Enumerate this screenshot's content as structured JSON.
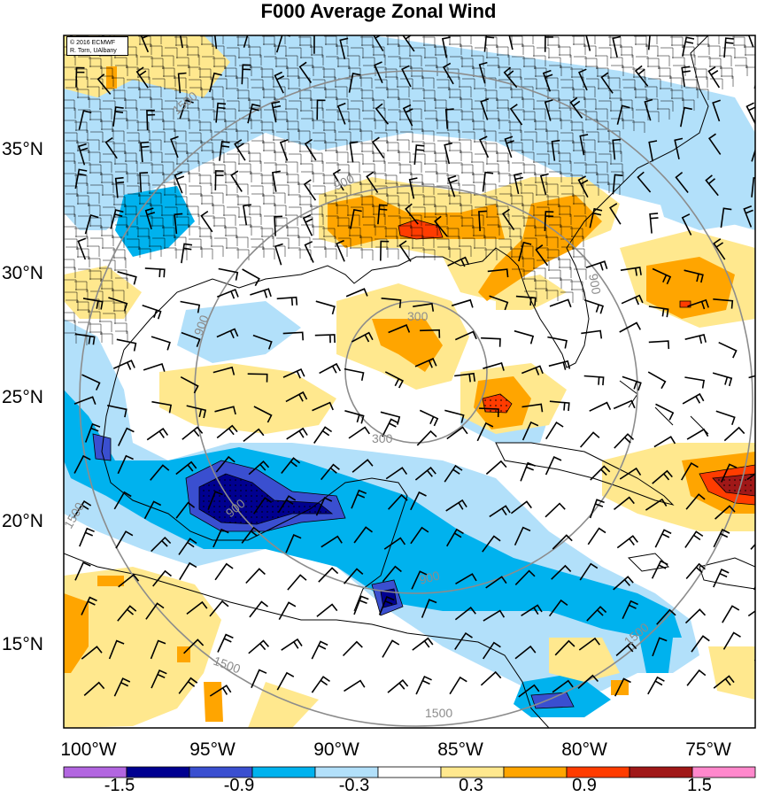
{
  "title": "F000 Average Zonal Wind",
  "credit": {
    "line1": "© 2016 ECMWF",
    "line2": "R. Torn, UAlbany"
  },
  "lat_labels": [
    "35°N",
    "30°N",
    "25°N",
    "20°N",
    "15°N"
  ],
  "lon_labels": [
    "100°W",
    "95°W",
    "90°W",
    "85°W",
    "80°W",
    "75°W"
  ],
  "colorbar": {
    "tick_labels": [
      "-1.5",
      "-0.9",
      "-0.3",
      "0.3",
      "0.9",
      "1.5"
    ],
    "colors": [
      "#b266e0",
      "#000090",
      "#3a4fd0",
      "#00b2ee",
      "#b2e0fa",
      "#ffffff",
      "#ffe88e",
      "#ffa500",
      "#ff3c00",
      "#a01818",
      "#ff88cc"
    ]
  },
  "contour_labels": [
    "300",
    "300",
    "900",
    "900",
    "900",
    "900",
    "900",
    "1500",
    "1500",
    "1500",
    "1500",
    "1500"
  ],
  "shading_colors": {
    "light_blue": "#b2e0fa",
    "blue": "#00b2ee",
    "medium_blue": "#3a4fd0",
    "dark_blue": "#000090",
    "yellow": "#ffe88e",
    "orange": "#ffa500",
    "red": "#ff3c00",
    "dark_red": "#a01818"
  }
}
